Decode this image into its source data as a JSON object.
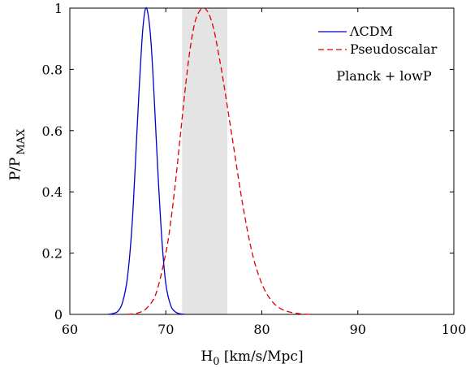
{
  "chart_data": {
    "type": "line",
    "xlabel": {
      "main": "H",
      "sub": "0",
      "rest": " [km/s/Mpc]"
    },
    "ylabel": {
      "main": "P/P",
      "sub": "MAX"
    },
    "xlim": [
      60,
      100
    ],
    "ylim": [
      0,
      1
    ],
    "x_ticks": [
      "60",
      "70",
      "80",
      "90",
      "100"
    ],
    "y_ticks": [
      "0",
      "0.2",
      "0.4",
      "0.6",
      "0.8",
      "1"
    ],
    "shaded_band": {
      "x_range": [
        71.7,
        76.4
      ],
      "color": "#e4e4e4"
    },
    "legend_position": "top-right",
    "annotation": "Planck + lowP",
    "series": [
      {
        "name": "ΛCDM",
        "color": "#0000cc",
        "style": "solid",
        "x": [
          64.0,
          64.5,
          65.0,
          65.5,
          66.0,
          66.5,
          67.0,
          67.3,
          67.6,
          67.9,
          68.2,
          68.5,
          68.8,
          69.2,
          69.6,
          70.0,
          70.5,
          71.0,
          71.5,
          72.0
        ],
        "y": [
          0.0,
          0.003,
          0.01,
          0.04,
          0.12,
          0.3,
          0.6,
          0.78,
          0.93,
          1.0,
          0.97,
          0.87,
          0.7,
          0.45,
          0.24,
          0.1,
          0.03,
          0.008,
          0.002,
          0.0
        ]
      },
      {
        "name": "Pseudoscalar",
        "color": "#dd0000",
        "style": "dashed",
        "x": [
          66.0,
          67.0,
          68.0,
          69.0,
          70.0,
          70.5,
          71.0,
          71.5,
          72.0,
          72.5,
          73.0,
          73.5,
          74.0,
          74.5,
          75.0,
          75.5,
          76.0,
          77.0,
          78.0,
          79.0,
          80.0,
          81.0,
          82.0,
          83.0,
          84.0,
          85.0
        ],
        "y": [
          0.0,
          0.004,
          0.02,
          0.07,
          0.2,
          0.3,
          0.43,
          0.58,
          0.73,
          0.86,
          0.95,
          0.99,
          1.0,
          0.98,
          0.93,
          0.85,
          0.76,
          0.56,
          0.36,
          0.2,
          0.1,
          0.045,
          0.018,
          0.007,
          0.002,
          0.0
        ]
      }
    ]
  }
}
